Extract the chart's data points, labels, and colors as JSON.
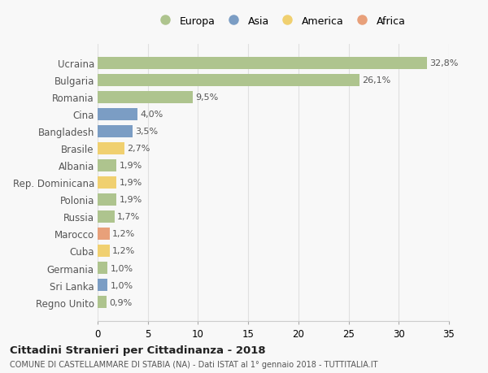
{
  "countries": [
    "Ucraina",
    "Bulgaria",
    "Romania",
    "Cina",
    "Bangladesh",
    "Brasile",
    "Albania",
    "Rep. Dominicana",
    "Polonia",
    "Russia",
    "Marocco",
    "Cuba",
    "Germania",
    "Sri Lanka",
    "Regno Unito"
  ],
  "values": [
    32.8,
    26.1,
    9.5,
    4.0,
    3.5,
    2.7,
    1.9,
    1.9,
    1.9,
    1.7,
    1.2,
    1.2,
    1.0,
    1.0,
    0.9
  ],
  "labels": [
    "32,8%",
    "26,1%",
    "9,5%",
    "4,0%",
    "3,5%",
    "2,7%",
    "1,9%",
    "1,9%",
    "1,9%",
    "1,7%",
    "1,2%",
    "1,2%",
    "1,0%",
    "1,0%",
    "0,9%"
  ],
  "colors": [
    "#aec48e",
    "#aec48e",
    "#aec48e",
    "#7b9dc4",
    "#7b9dc4",
    "#f0d070",
    "#aec48e",
    "#f0d070",
    "#aec48e",
    "#aec48e",
    "#e8a07a",
    "#f0d070",
    "#aec48e",
    "#7b9dc4",
    "#aec48e"
  ],
  "legend_labels": [
    "Europa",
    "Asia",
    "America",
    "Africa"
  ],
  "legend_colors": [
    "#aec48e",
    "#7b9dc4",
    "#f0d070",
    "#e8a07a"
  ],
  "title": "Cittadini Stranieri per Cittadinanza - 2018",
  "subtitle": "COMUNE DI CASTELLAMMARE DI STABIA (NA) - Dati ISTAT al 1° gennaio 2018 - TUTTITALIA.IT",
  "xlim": [
    0,
    35
  ],
  "xticks": [
    0,
    5,
    10,
    15,
    20,
    25,
    30,
    35
  ],
  "bg_color": "#f8f8f8",
  "grid_color": "#e0e0e0",
  "bar_height": 0.72
}
